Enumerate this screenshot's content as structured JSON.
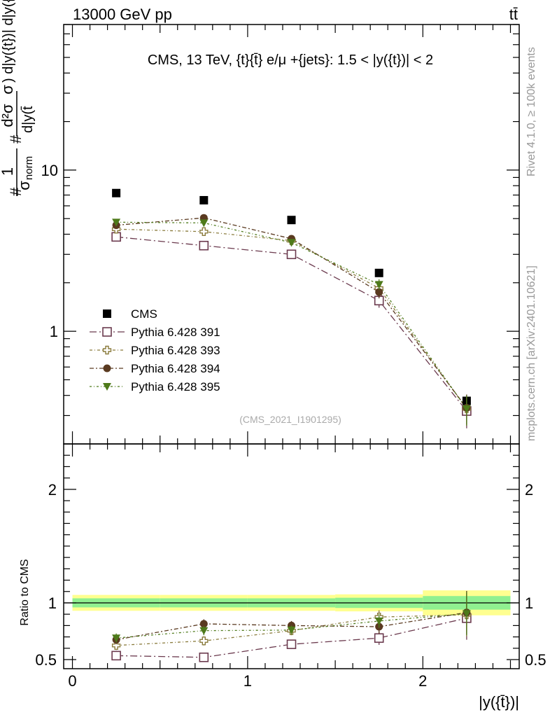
{
  "header": {
    "energy_label": "13000 GeV pp",
    "process_label": "tt̄"
  },
  "side": {
    "rivet_label": "Rivet 4.1.0, ≥ 100k events",
    "mcplots_label": "mcplots.cern.ch [arXiv:2401.10621]"
  },
  "colors": {
    "cms": "#000000",
    "p391": "#6b3a4e",
    "p393": "#8a7b3c",
    "p394": "#5a3a20",
    "p395": "#4e7a1a",
    "band_inner": "#90f090",
    "band_outer": "#ffff90"
  },
  "chart_data": {
    "type": "scatter",
    "title": "CMS, 13 TeV, {t}{t̄} e/μ +{jets}: 1.5 < |y({t})| < 2",
    "analysis_id": "(CMS_2021_I1901295)",
    "xlabel": "|y({t̄})|",
    "ylabel_parts": {
      "hash1": "#",
      "one": "1",
      "sigma": "σ",
      "norm": "norm",
      "hash2": "#",
      "numer": "d²σ",
      "sigma_close": "σ",
      "numer_tail": ") d|y({t})| d|y({t})|}",
      "denom": "d|y(t̄"
    },
    "ratio_ylabel": "Ratio to CMS",
    "xlim": [
      -0.05,
      2.55
    ],
    "ylim_main": [
      0.2,
      80
    ],
    "ylim_ratio": [
      0.42,
      2.4
    ],
    "x_ticks": [
      {
        "v": 0,
        "label": "0"
      },
      {
        "v": 1,
        "label": "1"
      },
      {
        "v": 2,
        "label": "2"
      }
    ],
    "main_y_ticks": [
      {
        "v": 1,
        "label": "1"
      },
      {
        "v": 10,
        "label": "10"
      }
    ],
    "ratio_y_ticks": [
      {
        "v": 0.5,
        "label": "0.5"
      },
      {
        "v": 1,
        "label": "1"
      },
      {
        "v": 2,
        "label": "2"
      }
    ],
    "bins": [
      {
        "lo": 0.0,
        "hi": 0.5
      },
      {
        "lo": 0.5,
        "hi": 1.0
      },
      {
        "lo": 1.0,
        "hi": 1.5
      },
      {
        "lo": 1.5,
        "hi": 2.0
      },
      {
        "lo": 2.0,
        "hi": 2.5
      }
    ],
    "x": [
      0.25,
      0.75,
      1.25,
      1.75,
      2.25
    ],
    "band_ratio": {
      "inner": [
        0.04,
        0.04,
        0.04,
        0.045,
        0.06
      ],
      "outer": [
        0.07,
        0.07,
        0.07,
        0.075,
        0.11
      ]
    },
    "series": [
      {
        "name": "CMS",
        "key": "cms",
        "marker": "square-filled",
        "values": [
          7.2,
          6.5,
          4.9,
          2.3,
          0.37
        ]
      },
      {
        "name": "Pythia 6.428 391",
        "key": "p391",
        "marker": "square-open",
        "values": [
          3.85,
          3.4,
          3.0,
          1.55,
          0.32
        ],
        "errors": [
          0.15,
          0.15,
          0.18,
          0.15,
          0.07
        ],
        "ratio": [
          0.535,
          0.52,
          0.635,
          0.69,
          0.865
        ],
        "ratio_err": [
          0.04,
          0.04,
          0.04,
          0.06,
          0.19
        ]
      },
      {
        "name": "Pythia 6.428 393",
        "key": "p393",
        "marker": "cross-open",
        "values": [
          4.3,
          4.15,
          3.65,
          1.85,
          0.33
        ],
        "errors": [
          0.15,
          0.15,
          0.18,
          0.15,
          0.07
        ],
        "ratio": [
          0.625,
          0.665,
          0.755,
          0.875,
          0.895
        ],
        "ratio_err": [
          0.04,
          0.04,
          0.04,
          0.06,
          0.19
        ]
      },
      {
        "name": "Pythia 6.428 394",
        "key": "p394",
        "marker": "circle-filled",
        "values": [
          4.55,
          5.05,
          3.75,
          1.75,
          0.335
        ],
        "errors": [
          0.15,
          0.15,
          0.18,
          0.15,
          0.07
        ],
        "ratio": [
          0.675,
          0.815,
          0.8,
          0.79,
          0.915
        ],
        "ratio_err": [
          0.04,
          0.04,
          0.04,
          0.06,
          0.19
        ]
      },
      {
        "name": "Pythia 6.428 395",
        "key": "p395",
        "marker": "triangle-down-filled",
        "values": [
          4.75,
          4.7,
          3.55,
          1.95,
          0.33
        ],
        "errors": [
          0.15,
          0.15,
          0.18,
          0.15,
          0.07
        ],
        "ratio": [
          0.69,
          0.755,
          0.76,
          0.84,
          0.905
        ],
        "ratio_err": [
          0.04,
          0.04,
          0.04,
          0.06,
          0.19
        ]
      }
    ]
  }
}
